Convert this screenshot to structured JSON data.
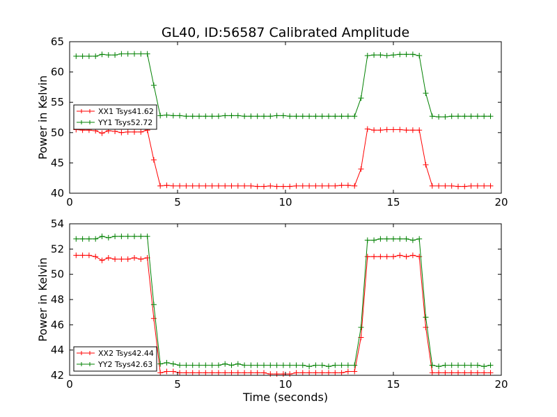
{
  "title": "GL40, ID:56587 Calibrated Amplitude",
  "chart_data": [
    {
      "type": "line",
      "xlabel": "",
      "ylabel": "Power in Kelvin",
      "xlim": [
        0,
        20
      ],
      "ylim": [
        40,
        65
      ],
      "xticks": [
        0,
        5,
        10,
        15,
        20
      ],
      "yticks": [
        40,
        45,
        50,
        55,
        60,
        65
      ],
      "legend_position": "center-left",
      "x": [
        0.3,
        0.6,
        0.9,
        1.2,
        1.5,
        1.8,
        2.1,
        2.4,
        2.7,
        3.0,
        3.3,
        3.6,
        3.9,
        4.2,
        4.5,
        4.8,
        5.1,
        5.4,
        5.7,
        6.0,
        6.3,
        6.6,
        6.9,
        7.2,
        7.5,
        7.8,
        8.1,
        8.4,
        8.7,
        9.0,
        9.3,
        9.6,
        9.9,
        10.2,
        10.5,
        10.8,
        11.1,
        11.4,
        11.7,
        12.0,
        12.3,
        12.6,
        12.9,
        13.2,
        13.5,
        13.8,
        14.1,
        14.4,
        14.7,
        15.0,
        15.3,
        15.6,
        15.9,
        16.2,
        16.5,
        16.8,
        17.1,
        17.4,
        17.7,
        18.0,
        18.3,
        18.6,
        18.9,
        19.2,
        19.5
      ],
      "series": [
        {
          "name": "XX1 Tsys41.62",
          "color": "#ff0000",
          "values": [
            50.5,
            50.4,
            50.4,
            50.3,
            49.9,
            50.3,
            50.2,
            50.0,
            50.1,
            50.1,
            50.1,
            50.4,
            45.5,
            41.2,
            41.3,
            41.2,
            41.2,
            41.2,
            41.2,
            41.2,
            41.2,
            41.2,
            41.2,
            41.2,
            41.2,
            41.2,
            41.2,
            41.2,
            41.1,
            41.1,
            41.2,
            41.1,
            41.1,
            41.1,
            41.2,
            41.2,
            41.2,
            41.2,
            41.2,
            41.2,
            41.2,
            41.3,
            41.3,
            41.2,
            44.0,
            50.6,
            50.4,
            50.4,
            50.5,
            50.5,
            50.5,
            50.4,
            50.4,
            50.4,
            44.7,
            41.2,
            41.2,
            41.2,
            41.2,
            41.1,
            41.1,
            41.2,
            41.2,
            41.2,
            41.2
          ]
        },
        {
          "name": "YY1 Tsys52.72",
          "color": "#008000",
          "values": [
            62.6,
            62.6,
            62.6,
            62.6,
            62.9,
            62.8,
            62.8,
            63.0,
            63.0,
            63.0,
            63.0,
            63.0,
            57.8,
            52.8,
            52.9,
            52.8,
            52.8,
            52.7,
            52.7,
            52.7,
            52.7,
            52.7,
            52.7,
            52.8,
            52.8,
            52.8,
            52.7,
            52.7,
            52.7,
            52.7,
            52.7,
            52.8,
            52.8,
            52.7,
            52.7,
            52.7,
            52.7,
            52.7,
            52.7,
            52.7,
            52.7,
            52.7,
            52.7,
            52.7,
            55.7,
            62.7,
            62.8,
            62.8,
            62.7,
            62.8,
            62.9,
            62.9,
            62.9,
            62.7,
            56.5,
            52.7,
            52.6,
            52.6,
            52.7,
            52.7,
            52.7,
            52.7,
            52.7,
            52.7,
            52.7
          ]
        }
      ]
    },
    {
      "type": "line",
      "xlabel": "Time (seconds)",
      "ylabel": "Power in Kelvin",
      "xlim": [
        0,
        20
      ],
      "ylim": [
        42,
        54
      ],
      "xticks": [
        0,
        5,
        10,
        15,
        20
      ],
      "yticks": [
        42,
        44,
        46,
        48,
        50,
        52,
        54
      ],
      "legend_position": "lower-left",
      "x": [
        0.3,
        0.6,
        0.9,
        1.2,
        1.5,
        1.8,
        2.1,
        2.4,
        2.7,
        3.0,
        3.3,
        3.6,
        3.9,
        4.2,
        4.5,
        4.8,
        5.1,
        5.4,
        5.7,
        6.0,
        6.3,
        6.6,
        6.9,
        7.2,
        7.5,
        7.8,
        8.1,
        8.4,
        8.7,
        9.0,
        9.3,
        9.6,
        9.9,
        10.2,
        10.5,
        10.8,
        11.1,
        11.4,
        11.7,
        12.0,
        12.3,
        12.6,
        12.9,
        13.2,
        13.5,
        13.8,
        14.1,
        14.4,
        14.7,
        15.0,
        15.3,
        15.6,
        15.9,
        16.2,
        16.5,
        16.8,
        17.1,
        17.4,
        17.7,
        18.0,
        18.3,
        18.6,
        18.9,
        19.2,
        19.5
      ],
      "series": [
        {
          "name": "XX2 Tsys42.44",
          "color": "#ff0000",
          "values": [
            51.5,
            51.5,
            51.5,
            51.4,
            51.1,
            51.3,
            51.2,
            51.2,
            51.2,
            51.3,
            51.2,
            51.3,
            46.5,
            42.2,
            42.3,
            42.3,
            42.2,
            42.2,
            42.2,
            42.2,
            42.2,
            42.2,
            42.2,
            42.2,
            42.2,
            42.2,
            42.2,
            42.2,
            42.2,
            42.2,
            42.1,
            42.1,
            42.1,
            42.1,
            42.2,
            42.2,
            42.2,
            42.2,
            42.2,
            42.2,
            42.2,
            42.2,
            42.3,
            42.3,
            45.0,
            51.4,
            51.4,
            51.4,
            51.4,
            51.4,
            51.5,
            51.4,
            51.5,
            51.4,
            45.8,
            42.2,
            42.2,
            42.2,
            42.2,
            42.2,
            42.2,
            42.2,
            42.2,
            42.2,
            42.2
          ]
        },
        {
          "name": "YY2 Tsys42.63",
          "color": "#008000",
          "values": [
            52.8,
            52.8,
            52.8,
            52.8,
            53.0,
            52.9,
            53.0,
            53.0,
            53.0,
            53.0,
            53.0,
            53.0,
            47.6,
            42.9,
            43.0,
            42.9,
            42.8,
            42.8,
            42.8,
            42.8,
            42.8,
            42.8,
            42.8,
            42.9,
            42.8,
            42.9,
            42.8,
            42.8,
            42.8,
            42.8,
            42.8,
            42.8,
            42.8,
            42.8,
            42.8,
            42.8,
            42.7,
            42.8,
            42.8,
            42.7,
            42.8,
            42.8,
            42.8,
            42.8,
            45.8,
            52.7,
            52.7,
            52.8,
            52.8,
            52.8,
            52.8,
            52.8,
            52.7,
            52.8,
            46.6,
            42.8,
            42.7,
            42.8,
            42.8,
            42.8,
            42.8,
            42.8,
            42.8,
            42.7,
            42.8
          ]
        }
      ]
    }
  ]
}
